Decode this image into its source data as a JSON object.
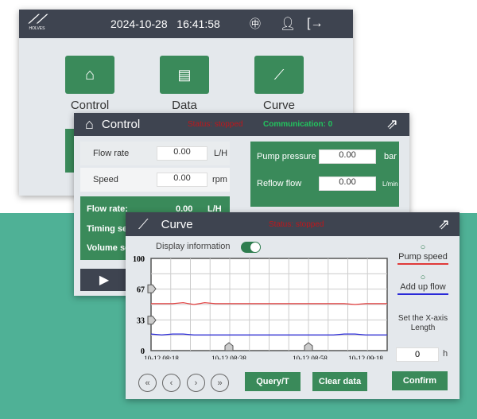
{
  "main": {
    "brand": "HOLVES",
    "date": "2024-10-28",
    "time": "16:41:58",
    "tiles": [
      {
        "label": "Control",
        "icon": "home-icon"
      },
      {
        "label": "Data",
        "icon": "document-icon"
      },
      {
        "label": "Curve",
        "icon": "chart-icon"
      }
    ]
  },
  "control": {
    "title": "Control",
    "status": "Status: stopped",
    "communication": "Communication: 0",
    "left_rows": [
      {
        "label": "Flow rate",
        "value": "0.00",
        "unit": "L/H"
      },
      {
        "label": "Speed",
        "value": "0.00",
        "unit": "rpm"
      }
    ],
    "right_rows": [
      {
        "label": "Pump pressure",
        "value": "0.00",
        "unit": "bar"
      },
      {
        "label": "Reflow flow",
        "value": "0.00",
        "unit": "L/min"
      }
    ],
    "green_rows": [
      {
        "label": "Flow rate:",
        "value": "0.00",
        "unit": "L/H"
      },
      {
        "label": "Timing se"
      },
      {
        "label": "Volume se"
      }
    ]
  },
  "curve": {
    "title": "Curve",
    "status": "Status: stopped",
    "display_info": "Display information",
    "display_info_on": true,
    "legend": [
      {
        "name": "Pump speed",
        "color": "#e03a3a"
      },
      {
        "name": "Add up flow",
        "color": "#2a2ad8"
      }
    ],
    "x_axis_label": "Set the X-axis Length",
    "x_axis_value": "0",
    "x_axis_unit": "h",
    "buttons": {
      "query": "Query/T",
      "clear": "Clear data",
      "confirm": "Confirm"
    }
  },
  "chart_data": {
    "type": "line",
    "ylim": [
      0,
      100
    ],
    "yticks": [
      "100",
      "67",
      "33",
      "0"
    ],
    "xticks": [
      "10-12  08:18",
      "10-12  08:38",
      "10-12  08:58",
      "10-12  09:18"
    ],
    "grid": true,
    "series": [
      {
        "name": "Pump speed",
        "color": "#e03a3a",
        "values": [
          51,
          51,
          51,
          52,
          50,
          52,
          51,
          51,
          51,
          51,
          51,
          51,
          51,
          51,
          51,
          51,
          51,
          51,
          51,
          50,
          51,
          51,
          51
        ]
      },
      {
        "name": "Add up flow",
        "color": "#2a2ad8",
        "values": [
          18,
          17,
          18,
          18,
          17,
          17,
          17,
          17,
          17,
          17,
          17,
          17,
          17,
          17,
          17,
          17,
          17,
          17,
          18,
          18,
          17,
          17,
          17
        ]
      }
    ]
  }
}
